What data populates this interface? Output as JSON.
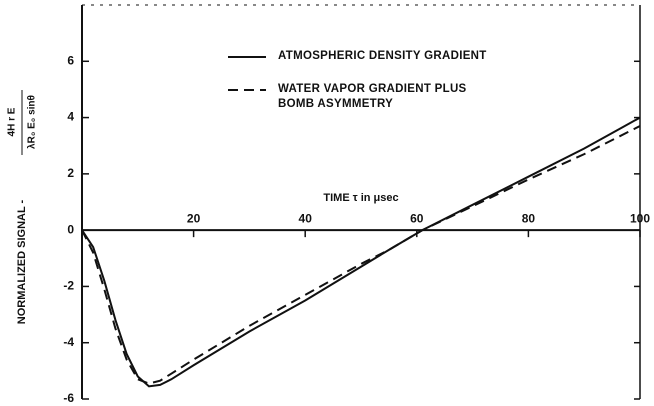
{
  "chart_data": {
    "type": "line",
    "xlabel": "TIME τ in μsec",
    "ylabel": "NORMALIZED SIGNAL -",
    "ylabel_numerator": "4H r E",
    "ylabel_denominator": "λR₀ E₀ sinθ",
    "x": [
      0,
      2,
      4,
      6,
      8,
      10,
      12,
      14,
      16,
      20,
      30,
      40,
      50,
      55,
      61,
      70,
      80,
      90,
      100
    ],
    "series": [
      {
        "name": "ATMOSPHERIC DENSITY GRADIENT",
        "color": "#111111",
        "style": "solid",
        "values": [
          0,
          -0.6,
          -1.8,
          -3.2,
          -4.4,
          -5.2,
          -5.55,
          -5.5,
          -5.3,
          -4.8,
          -3.6,
          -2.5,
          -1.3,
          -0.7,
          0,
          0.9,
          1.9,
          2.9,
          4.0
        ]
      },
      {
        "name": "WATER VAPOR GRADIENT PLUS BOMB ASYMMETRY",
        "color": "#111111",
        "style": "dashed",
        "values": [
          0,
          -0.8,
          -2.1,
          -3.5,
          -4.6,
          -5.3,
          -5.45,
          -5.35,
          -5.1,
          -4.6,
          -3.4,
          -2.3,
          -1.2,
          -0.7,
          0,
          0.85,
          1.8,
          2.7,
          3.7
        ]
      }
    ],
    "xlim": [
      0,
      100
    ],
    "xticks": [
      20,
      40,
      60,
      80,
      100
    ],
    "ylim": [
      -6,
      8
    ],
    "yticks": [
      -6,
      -4,
      -2,
      0,
      2,
      4,
      6
    ]
  }
}
